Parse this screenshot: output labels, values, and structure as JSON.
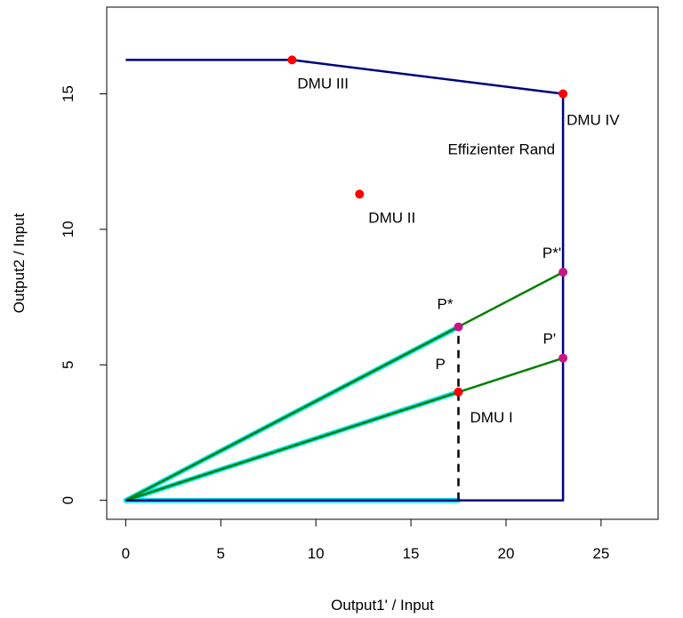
{
  "chart_data": {
    "type": "line",
    "xlabel": "Output1' / Input",
    "ylabel": "Output2 / Input",
    "xlim": [
      -1,
      28
    ],
    "ylim": [
      -0.7,
      18.2
    ],
    "x_ticks": [
      0,
      5,
      10,
      15,
      20,
      25
    ],
    "y_ticks": [
      0,
      5,
      10,
      15
    ],
    "grid": false,
    "frontier": {
      "label": "Effizienter Rand",
      "color": "#000080",
      "points": [
        [
          0,
          16.25
        ],
        [
          8.75,
          16.25
        ],
        [
          23,
          15
        ],
        [
          23,
          0
        ],
        [
          0,
          0
        ]
      ]
    },
    "rays": [
      {
        "color": "#008000",
        "highlight": "#00e5ee",
        "points": [
          [
            0,
            0
          ],
          [
            23,
            8.42
          ]
        ],
        "highlight_to": [
          17.5,
          6.4
        ]
      },
      {
        "color": "#008000",
        "highlight": "#00e5ee",
        "points": [
          [
            0,
            0
          ],
          [
            23,
            5.25
          ]
        ],
        "highlight_to": [
          17.5,
          4.0
        ]
      },
      {
        "color": "#008000",
        "highlight": "#00e5ee",
        "points": [
          [
            0,
            0
          ],
          [
            23,
            0
          ]
        ],
        "highlight_to": [
          17.5,
          0
        ]
      }
    ],
    "dashed_segment": {
      "color": "#000000",
      "points": [
        [
          17.5,
          0
        ],
        [
          17.5,
          6.4
        ]
      ]
    },
    "points": [
      {
        "label": "DMU I",
        "x": 17.5,
        "y": 4.0,
        "color": "#ff0000"
      },
      {
        "label": "DMU II",
        "x": 12.3,
        "y": 11.3,
        "color": "#ff0000"
      },
      {
        "label": "DMU III",
        "x": 8.75,
        "y": 16.25,
        "color": "#ff0000"
      },
      {
        "label": "DMU IV",
        "x": 23,
        "y": 15,
        "color": "#ff0000"
      }
    ],
    "projections": [
      {
        "label": "P*",
        "x": 17.5,
        "y": 6.4,
        "color": "#c71585"
      },
      {
        "label": "P*'",
        "x": 23,
        "y": 8.42,
        "color": "#c71585"
      },
      {
        "label": "P'",
        "x": 23,
        "y": 5.25,
        "color": "#c71585"
      }
    ],
    "extra_labels": [
      {
        "text": "P",
        "x": 16.55,
        "y": 4.85
      }
    ]
  }
}
